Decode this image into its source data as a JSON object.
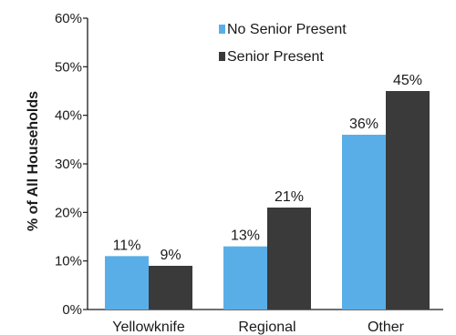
{
  "chart_data": {
    "type": "bar",
    "title": "",
    "xlabel": "",
    "ylabel": "% of All Households",
    "ylim": [
      0,
      60
    ],
    "y_ticks": [
      "0%",
      "10%",
      "20%",
      "30%",
      "40%",
      "50%",
      "60%"
    ],
    "categories": [
      "Yellowknife",
      "Regional",
      "Other"
    ],
    "series": [
      {
        "name": "No Senior Present",
        "values": [
          11,
          13,
          36
        ],
        "labels": [
          "11%",
          "13%",
          "36%"
        ],
        "color": "#5aaee8"
      },
      {
        "name": "Senior Present",
        "values": [
          9,
          21,
          45
        ],
        "labels": [
          "9%",
          "21%",
          "45%"
        ],
        "color": "#3a3a3a"
      }
    ],
    "grid": false,
    "legend": "top-left-inside"
  }
}
